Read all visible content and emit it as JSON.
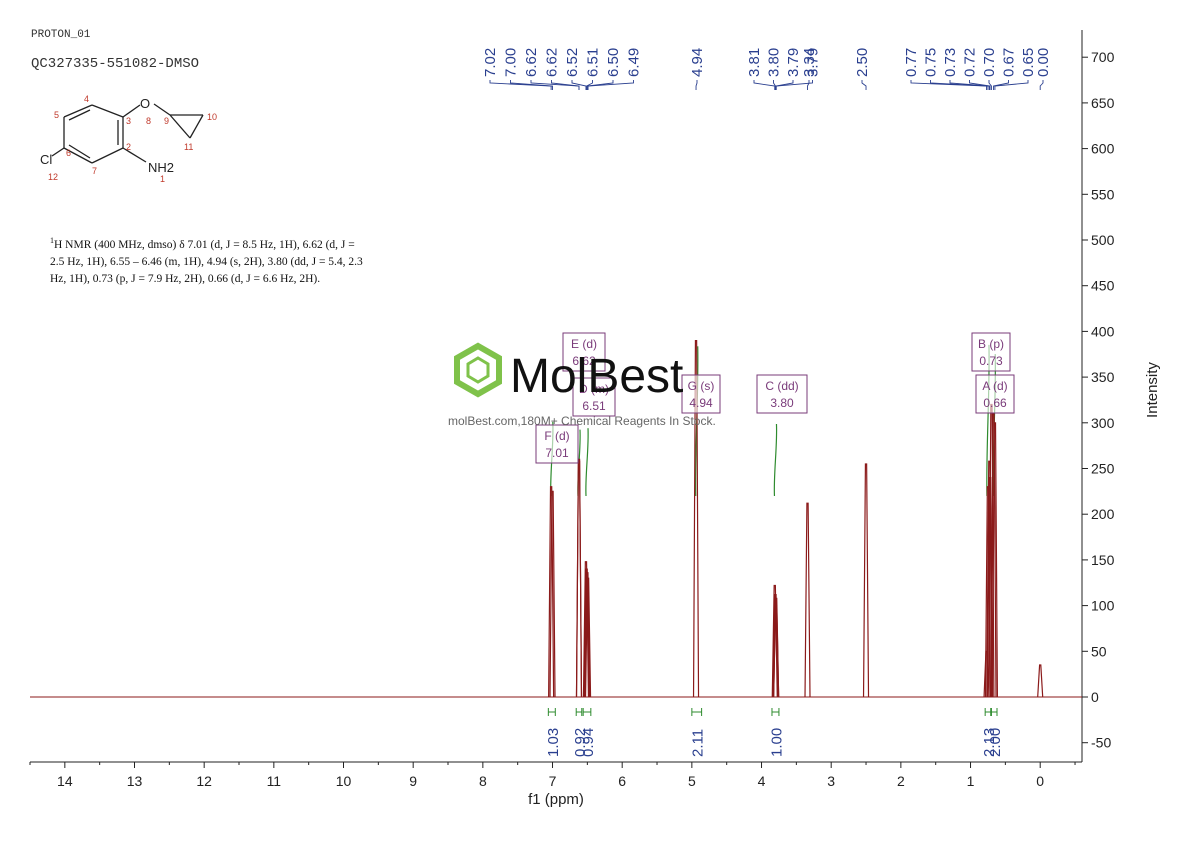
{
  "header": {
    "experiment": "PROTON_01",
    "sample": "QC327335-551082-DMSO"
  },
  "structure": {
    "atoms": [
      "4",
      "3",
      "O",
      "8",
      "9",
      "10",
      "5",
      "2",
      "11",
      "6",
      "7",
      "Cl",
      "12",
      "NH2",
      "1"
    ]
  },
  "nmr_description": {
    "sup": "1",
    "text": "H NMR (400 MHz, dmso) δ 7.01 (d, J = 8.5 Hz, 1H), 6.62 (d, J = 2.5 Hz, 1H), 6.55 – 6.46 (m, 1H), 4.94 (s, 2H), 3.80 (dd, J = 5.4, 2.3 Hz, 1H), 0.73 (p, J = 7.9 Hz, 2H), 0.66 (d, J = 6.6 Hz, 2H)."
  },
  "watermark": {
    "brand": "MolBest",
    "tagline": "molBest.com,180M+ Chemical Reagents In Stock."
  },
  "colors": {
    "spectrum": "#8b1a1a",
    "integral": "#2e8b2e",
    "peak_label": "#2a3f8f",
    "multiplet_box": "#7a3b7a",
    "watermark_green": "#7fc24a"
  },
  "chart_data": {
    "type": "line",
    "xlabel": "f1 (ppm)",
    "ylabel": "Intensity",
    "xlim": [
      14.5,
      -0.6
    ],
    "ylim": [
      -65,
      730
    ],
    "x_ticks": [
      14,
      13,
      12,
      11,
      10,
      9,
      8,
      7,
      6,
      5,
      4,
      3,
      2,
      1,
      0
    ],
    "y_ticks": [
      -50,
      0,
      50,
      100,
      150,
      200,
      250,
      300,
      350,
      400,
      450,
      500,
      550,
      600,
      650,
      700
    ],
    "peaks": [
      {
        "ppm": 7.02,
        "height": 230
      },
      {
        "ppm": 7.0,
        "height": 225
      },
      {
        "ppm": 6.62,
        "height": 260
      },
      {
        "ppm": 6.62,
        "height": 258
      },
      {
        "ppm": 6.52,
        "height": 148
      },
      {
        "ppm": 6.51,
        "height": 140
      },
      {
        "ppm": 6.5,
        "height": 136
      },
      {
        "ppm": 6.49,
        "height": 130
      },
      {
        "ppm": 4.94,
        "height": 390
      },
      {
        "ppm": 3.81,
        "height": 122
      },
      {
        "ppm": 3.8,
        "height": 112
      },
      {
        "ppm": 3.79,
        "height": 108
      },
      {
        "ppm": 3.79,
        "height": 100
      },
      {
        "ppm": 3.34,
        "height": 212
      },
      {
        "ppm": 2.5,
        "height": 255
      },
      {
        "ppm": 0.77,
        "height": 50
      },
      {
        "ppm": 0.75,
        "height": 230
      },
      {
        "ppm": 0.73,
        "height": 258
      },
      {
        "ppm": 0.72,
        "height": 240
      },
      {
        "ppm": 0.7,
        "height": 320
      },
      {
        "ppm": 0.67,
        "height": 310
      },
      {
        "ppm": 0.65,
        "height": 300
      },
      {
        "ppm": 0.0,
        "height": 35
      }
    ],
    "peak_labels": [
      "7.02",
      "7.00",
      "6.62",
      "6.62",
      "6.52",
      "6.51",
      "6.50",
      "6.49",
      "4.94",
      "3.81",
      "3.80",
      "3.79",
      "3.79",
      "3.34",
      "2.50",
      "0.77",
      "0.75",
      "0.73",
      "0.72",
      "0.70",
      "0.67",
      "0.65",
      "0.00"
    ],
    "integrals": [
      {
        "ppm_from": 7.06,
        "ppm_to": 6.96,
        "value": "1.03"
      },
      {
        "ppm_from": 6.66,
        "ppm_to": 6.58,
        "value": "0.92"
      },
      {
        "ppm_from": 6.56,
        "ppm_to": 6.45,
        "value": "0.94"
      },
      {
        "ppm_from": 5.0,
        "ppm_to": 4.86,
        "value": "2.11"
      },
      {
        "ppm_from": 3.85,
        "ppm_to": 3.75,
        "value": "1.00"
      },
      {
        "ppm_from": 0.79,
        "ppm_to": 0.71,
        "value": "2.13"
      },
      {
        "ppm_from": 0.7,
        "ppm_to": 0.62,
        "value": "2.00"
      }
    ],
    "multiplets": [
      {
        "letter": "E",
        "mult": "(d)",
        "shift": "6.62"
      },
      {
        "letter": "D",
        "mult": "(m)",
        "shift": "6.51"
      },
      {
        "letter": "F",
        "mult": "(d)",
        "shift": "7.01"
      },
      {
        "letter": "G",
        "mult": "(s)",
        "shift": "4.94"
      },
      {
        "letter": "C",
        "mult": "(dd)",
        "shift": "3.80"
      },
      {
        "letter": "B",
        "mult": "(p)",
        "shift": "0.73"
      },
      {
        "letter": "A",
        "mult": "(d)",
        "shift": "0.66"
      }
    ]
  }
}
